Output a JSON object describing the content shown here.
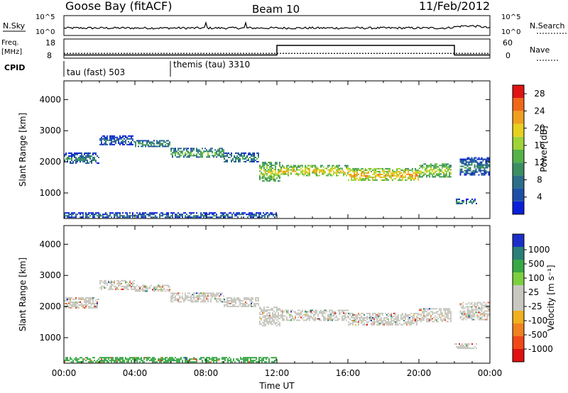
{
  "header": {
    "station": "Goose Bay (fitACF)",
    "beam": "Beam 10",
    "date": "11/Feb/2012"
  },
  "nsky": {
    "label": "N.Sky",
    "ticks": [
      "10^5",
      "10^0"
    ]
  },
  "nsearch": {
    "label": "N.Search",
    "ticks": [
      "10^5",
      "10^0"
    ]
  },
  "freq": {
    "label_line1": "Freq.",
    "label_line2": "[MHz]",
    "ticks": [
      "18",
      "8"
    ]
  },
  "nave": {
    "label": "Nave",
    "ticks": [
      "60",
      "0"
    ]
  },
  "cpid": {
    "label": "CPID",
    "segments": [
      {
        "name": "tau (fast) 503",
        "start": "00:00"
      },
      {
        "name": "themis (tau) 3310",
        "start": "06:00"
      }
    ]
  },
  "power_colorbar": {
    "label": "Power [dB]",
    "ticks": [
      "28",
      "24",
      "20",
      "16",
      "12",
      "8",
      "4"
    ]
  },
  "velocity_colorbar": {
    "label": "Velocity [m s⁻¹]",
    "ticks": [
      "1000",
      "500",
      "100",
      "25",
      "-25",
      "-100",
      "-500",
      "-1000"
    ]
  },
  "chart_data": [
    {
      "type": "heatmap",
      "panel": "power",
      "xlabel": "Time UT",
      "ylabel": "Slant Range [km]",
      "x_ticks": [
        "00:00",
        "04:00",
        "08:00",
        "12:00",
        "16:00",
        "20:00",
        "00:00"
      ],
      "xlim_hours": [
        0,
        24
      ],
      "ylim_km": [
        180,
        4600
      ],
      "y_ticks": [
        1000,
        2000,
        3000,
        4000
      ],
      "colorbar": {
        "label": "Power [dB]",
        "range": [
          0,
          30
        ]
      },
      "echo_bands": [
        {
          "t": [
            0.0,
            2.0
          ],
          "range_km": [
            1950,
            2300
          ],
          "power_db": 8
        },
        {
          "t": [
            2.0,
            4.0
          ],
          "range_km": [
            2550,
            2850
          ],
          "power_db": 6
        },
        {
          "t": [
            4.0,
            6.0
          ],
          "range_km": [
            2450,
            2700
          ],
          "power_db": 10
        },
        {
          "t": [
            6.0,
            9.0
          ],
          "range_km": [
            2150,
            2450
          ],
          "power_db": 12
        },
        {
          "t": [
            9.0,
            11.0
          ],
          "range_km": [
            2000,
            2300
          ],
          "power_db": 10
        },
        {
          "t": [
            11.0,
            12.2
          ],
          "range_km": [
            1350,
            2000
          ],
          "power_db": 16
        },
        {
          "t": [
            12.2,
            16.0
          ],
          "range_km": [
            1550,
            1900
          ],
          "power_db": 18
        },
        {
          "t": [
            16.0,
            20.0
          ],
          "range_km": [
            1400,
            1800
          ],
          "power_db": 20
        },
        {
          "t": [
            20.0,
            21.8
          ],
          "range_km": [
            1500,
            1950
          ],
          "power_db": 16
        },
        {
          "t": [
            22.0,
            23.3
          ],
          "range_km": [
            620,
            820
          ],
          "power_db": 8
        },
        {
          "t": [
            22.3,
            24.0
          ],
          "range_km": [
            1550,
            2150
          ],
          "power_db": 8
        },
        {
          "t": [
            0.0,
            12.0
          ],
          "range_km": [
            200,
            380
          ],
          "power_db": 6
        }
      ]
    },
    {
      "type": "heatmap",
      "panel": "velocity",
      "xlabel": "Time UT",
      "ylabel": "Slant Range [km]",
      "x_ticks": [
        "00:00",
        "04:00",
        "08:00",
        "12:00",
        "16:00",
        "20:00",
        "00:00"
      ],
      "xlim_hours": [
        0,
        24
      ],
      "ylim_km": [
        180,
        4600
      ],
      "y_ticks": [
        1000,
        2000,
        3000,
        4000
      ],
      "colorbar": {
        "label": "Velocity [m s⁻¹]",
        "range": [
          -1000,
          1000
        ]
      },
      "echo_bands": [
        {
          "t": [
            0.0,
            2.0
          ],
          "range_km": [
            1950,
            2300
          ],
          "velocity": 0
        },
        {
          "t": [
            2.0,
            4.0
          ],
          "range_km": [
            2550,
            2850
          ],
          "velocity": 0
        },
        {
          "t": [
            4.0,
            6.0
          ],
          "range_km": [
            2450,
            2700
          ],
          "velocity": 0
        },
        {
          "t": [
            6.0,
            9.0
          ],
          "range_km": [
            2150,
            2450
          ],
          "velocity": 0
        },
        {
          "t": [
            9.0,
            11.0
          ],
          "range_km": [
            2000,
            2300
          ],
          "velocity": 0
        },
        {
          "t": [
            11.0,
            12.2
          ],
          "range_km": [
            1350,
            2000
          ],
          "velocity": 0
        },
        {
          "t": [
            12.2,
            16.0
          ],
          "range_km": [
            1550,
            1900
          ],
          "velocity": 0
        },
        {
          "t": [
            16.0,
            20.0
          ],
          "range_km": [
            1400,
            1800
          ],
          "velocity": 0
        },
        {
          "t": [
            20.0,
            21.8
          ],
          "range_km": [
            1500,
            1950
          ],
          "velocity": 0
        },
        {
          "t": [
            22.0,
            23.3
          ],
          "range_km": [
            620,
            820
          ],
          "velocity": 0
        },
        {
          "t": [
            22.3,
            24.0
          ],
          "range_km": [
            1550,
            2150
          ],
          "velocity": 0
        },
        {
          "t": [
            0.0,
            12.0
          ],
          "range_km": [
            200,
            380
          ],
          "velocity": 100
        }
      ]
    },
    {
      "type": "line",
      "panel": "frequency",
      "ylim_mhz": [
        8,
        18
      ],
      "series": [
        {
          "t": [
            0,
            24
          ],
          "mhz": [
            10.5,
            10.5
          ]
        }
      ]
    },
    {
      "type": "line",
      "panel": "nave",
      "ylim": [
        0,
        60
      ],
      "series": [
        {
          "t": [
            0,
            12,
            12,
            22,
            22,
            24
          ],
          "nave": [
            10,
            10,
            40,
            40,
            10,
            10
          ]
        }
      ]
    }
  ]
}
